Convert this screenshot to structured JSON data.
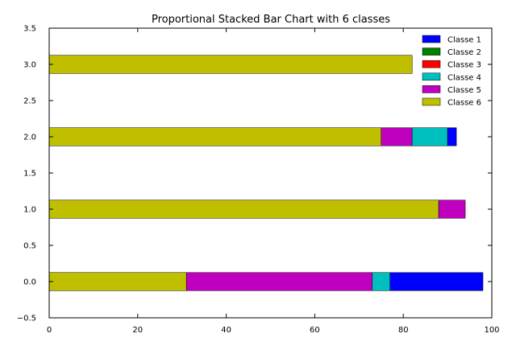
{
  "chart_data": {
    "type": "bar",
    "orientation": "horizontal",
    "stacked": true,
    "title": "Proportional Stacked Bar Chart with 6 classes",
    "xlabel": "",
    "ylabel": "",
    "xlim": [
      0,
      100
    ],
    "ylim": [
      -0.5,
      3.5
    ],
    "x_ticks": [
      "0",
      "20",
      "40",
      "60",
      "80",
      "100"
    ],
    "y_ticks": [
      "−0.5",
      "0.0",
      "0.5",
      "1.0",
      "1.5",
      "2.0",
      "2.5",
      "3.0",
      "3.5"
    ],
    "grid": false,
    "legend_position": "top-right",
    "bar_positions": [
      0,
      1,
      2,
      3
    ],
    "bar_height": 0.25,
    "series": [
      {
        "name": "Classe 6",
        "color": "#bfbf00",
        "values": [
          31,
          88,
          75,
          82
        ]
      },
      {
        "name": "Classe 5",
        "color": "#bf00bf",
        "values": [
          42,
          6,
          7,
          0
        ]
      },
      {
        "name": "Classe 4",
        "color": "#00bfbf",
        "values": [
          4,
          0,
          8,
          0
        ]
      },
      {
        "name": "Classe 3",
        "color": "#ff0000",
        "values": [
          0,
          0,
          0,
          0
        ]
      },
      {
        "name": "Classe 2",
        "color": "#008000",
        "values": [
          0,
          0,
          0,
          0
        ]
      },
      {
        "name": "Classe 1",
        "color": "#0000ff",
        "values": [
          21,
          0,
          2,
          0
        ]
      }
    ],
    "legend_order": [
      "Classe 1",
      "Classe 2",
      "Classe 3",
      "Classe 4",
      "Classe 5",
      "Classe 6"
    ]
  }
}
